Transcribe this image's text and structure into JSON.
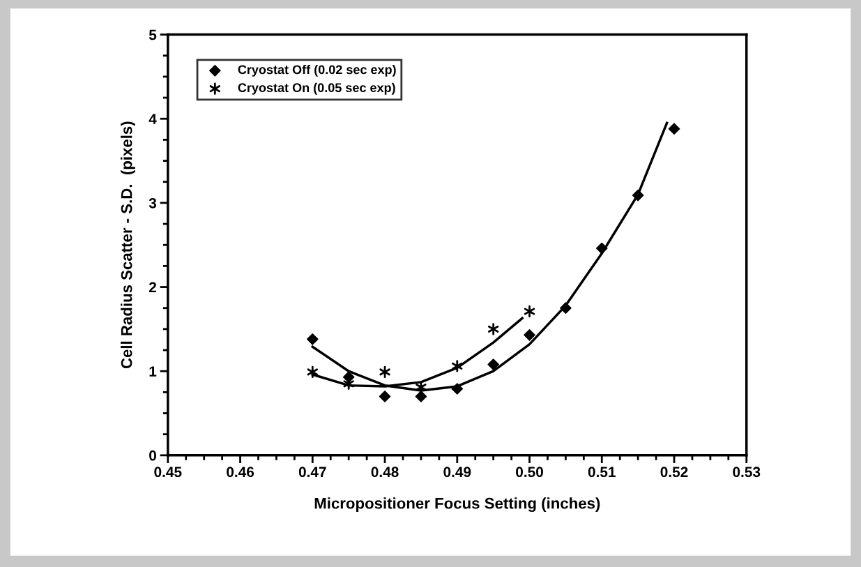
{
  "chart_data": {
    "type": "scatter",
    "xlabel": "Micropositioner Focus Setting (inches)",
    "ylabel": "Cell Radius Scatter - S.D.  (pixels)",
    "xlim": [
      0.45,
      0.53
    ],
    "xticks": [
      {
        "value": 0.45,
        "label": "0.45"
      },
      {
        "value": 0.46,
        "label": "0.46"
      },
      {
        "value": 0.47,
        "label": "0.47"
      },
      {
        "value": 0.48,
        "label": "0.48"
      },
      {
        "value": 0.49,
        "label": "0.49"
      },
      {
        "value": 0.5,
        "label": "0.50"
      },
      {
        "value": 0.51,
        "label": "0.51"
      },
      {
        "value": 0.52,
        "label": "0.52"
      },
      {
        "value": 0.53,
        "label": "0.53"
      }
    ],
    "ylim": [
      0,
      5
    ],
    "yticks": [
      0,
      1,
      2,
      3,
      4,
      5
    ],
    "grid": false,
    "legend": "top left",
    "series": [
      {
        "name": "Cryostat Off (0.02 sec exp)",
        "marker": "diamond",
        "color": "#000000",
        "x": [
          0.47,
          0.475,
          0.48,
          0.485,
          0.49,
          0.495,
          0.5,
          0.505,
          0.51,
          0.515,
          0.52
        ],
        "values": [
          1.38,
          0.93,
          0.7,
          0.7,
          0.79,
          1.08,
          1.43,
          1.75,
          2.46,
          3.09,
          3.88
        ]
      },
      {
        "name": "Cryostat On (0.05 sec exp)",
        "marker": "cross",
        "color": "#000000",
        "x": [
          0.47,
          0.475,
          0.48,
          0.485,
          0.49,
          0.495,
          0.5
        ],
        "values": [
          0.99,
          0.85,
          0.99,
          0.81,
          1.06,
          1.5,
          1.71
        ]
      },
      {
        "type": "line",
        "color": "#000000",
        "marker": "none",
        "x": [
          0.47,
          0.475,
          0.48,
          0.485,
          0.49,
          0.495,
          0.5,
          0.505,
          0.51,
          0.515,
          0.519
        ],
        "values": [
          1.29,
          1.0,
          0.83,
          0.77,
          0.82,
          1.0,
          1.32,
          1.78,
          2.4,
          3.1,
          3.95
        ]
      },
      {
        "type": "line",
        "color": "#000000",
        "marker": "none",
        "x": [
          0.47,
          0.475,
          0.48,
          0.485,
          0.49,
          0.495,
          0.499
        ],
        "values": [
          0.96,
          0.83,
          0.82,
          0.87,
          1.04,
          1.34,
          1.63
        ]
      }
    ]
  }
}
